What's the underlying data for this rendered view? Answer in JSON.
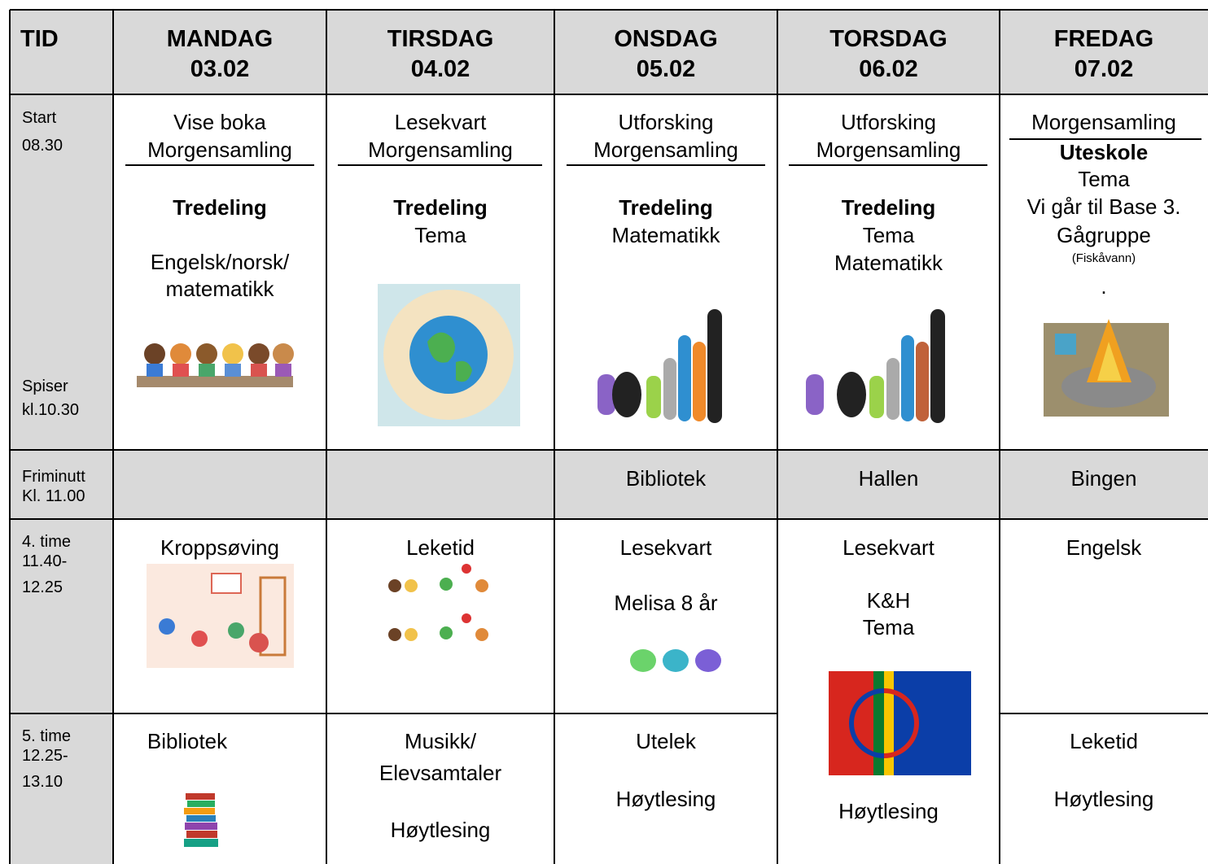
{
  "header": {
    "tid": "TID",
    "days": [
      {
        "name": "MANDAG",
        "date": "03.02"
      },
      {
        "name": "TIRSDAG",
        "date": "04.02"
      },
      {
        "name": "ONSDAG",
        "date": "05.02"
      },
      {
        "name": "TORSDAG",
        "date": "06.02"
      },
      {
        "name": "FREDAG",
        "date": "07.02"
      }
    ]
  },
  "rows": [
    {
      "time": [
        "Start",
        "08.30"
      ],
      "note": [
        "Spiser",
        "kl.10.30"
      ],
      "cells": [
        [
          "Vise boka",
          "Morgensamling",
          "Tredeling",
          "Engelsk/norsk/",
          "matematikk"
        ],
        [
          "Lesekvart",
          "Morgensamling",
          "Tredeling",
          "Tema"
        ],
        [
          "Utforsking",
          "Morgensamling",
          "Tredeling",
          "Matematikk"
        ],
        [
          "Utforsking",
          "Morgensamling",
          "Tredeling",
          "Tema",
          "Matematikk"
        ],
        [
          "Morgensamling",
          "Uteskole",
          "Tema",
          "Vi går til Base 3.",
          "Gågruppe",
          "(Fiskåvann)",
          "."
        ]
      ]
    },
    {
      "time": [
        "Friminutt",
        "Kl. 11.00"
      ],
      "cells": [
        "Bibliotek",
        "Hallen",
        "Bingen"
      ]
    },
    {
      "time": [
        "4. time",
        "11.40-",
        "12.25"
      ],
      "cells": [
        [
          "Kroppsøving"
        ],
        [
          "Leketid"
        ],
        [
          "Lesekvart",
          "Melisa 8 år"
        ],
        [
          "Lesekvart",
          "K&H",
          "Tema",
          "Høytlesing"
        ],
        [
          "Engelsk"
        ]
      ]
    },
    {
      "time": [
        "5. time",
        "12.25-",
        "13.10"
      ],
      "cells": [
        [
          "Bibliotek"
        ],
        [
          "Musikk/",
          "Elevsamtaler",
          "Høytlesing"
        ],
        [
          "Utelek",
          "Høytlesing"
        ],
        [
          "Leketid",
          "Høytlesing"
        ]
      ]
    }
  ]
}
